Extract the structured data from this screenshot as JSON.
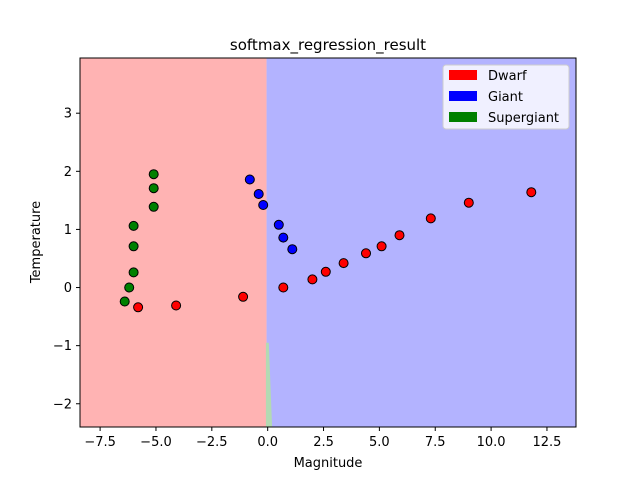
{
  "chart_data": {
    "type": "scatter",
    "title": "softmax_regression_result",
    "xlabel": "Magnitude",
    "ylabel": "Temperature",
    "xlim": [
      -8.4,
      13.8
    ],
    "ylim": [
      -2.4,
      3.95
    ],
    "xticks": [
      -7.5,
      -5.0,
      -2.5,
      0.0,
      2.5,
      5.0,
      7.5,
      10.0,
      12.5
    ],
    "xtick_labels": [
      "−7.5",
      "−5.0",
      "−2.5",
      "0.0",
      "2.5",
      "5.0",
      "7.5",
      "10.0",
      "12.5"
    ],
    "yticks": [
      -2,
      -1,
      0,
      1,
      2,
      3
    ],
    "ytick_labels": [
      "−2",
      "−1",
      "0",
      "1",
      "2",
      "3"
    ],
    "grid": false,
    "legend_position": "top-right",
    "regions": [
      {
        "class": "Dwarf",
        "color": "#ffb3b3",
        "x_from": -8.4,
        "x_to": -0.05
      },
      {
        "class": "Giant",
        "color": "#b3b3ff",
        "x_from": -0.05,
        "x_to": 13.8
      },
      {
        "class": "Supergiant",
        "color": "#b3dab3",
        "boundary_sliver": [
          [
            -0.08,
            -0.95
          ],
          [
            0.05,
            -0.95
          ],
          [
            0.2,
            -2.4
          ],
          [
            -0.08,
            -2.4
          ]
        ]
      }
    ],
    "legend": [
      {
        "name": "Dwarf",
        "color": "#ff0000"
      },
      {
        "name": "Giant",
        "color": "#0000ff"
      },
      {
        "name": "Supergiant",
        "color": "#008000"
      }
    ],
    "series": [
      {
        "name": "Dwarf",
        "color": "#ff0000",
        "points": [
          [
            -5.8,
            -0.34
          ],
          [
            -4.1,
            -0.31
          ],
          [
            -1.1,
            -0.16
          ],
          [
            0.7,
            0.0
          ],
          [
            2.0,
            0.14
          ],
          [
            2.6,
            0.27
          ],
          [
            3.4,
            0.42
          ],
          [
            4.4,
            0.59
          ],
          [
            5.1,
            0.71
          ],
          [
            5.9,
            0.9
          ],
          [
            7.3,
            1.19
          ],
          [
            9.0,
            1.46
          ],
          [
            11.8,
            1.64
          ]
        ]
      },
      {
        "name": "Giant",
        "color": "#0000ff",
        "points": [
          [
            -0.8,
            1.86
          ],
          [
            -0.4,
            1.61
          ],
          [
            -0.2,
            1.42
          ],
          [
            0.5,
            1.08
          ],
          [
            0.7,
            0.86
          ],
          [
            1.1,
            0.66
          ]
        ]
      },
      {
        "name": "Supergiant",
        "color": "#008000",
        "points": [
          [
            -5.1,
            1.95
          ],
          [
            -5.1,
            1.71
          ],
          [
            -5.1,
            1.39
          ],
          [
            -6.0,
            1.06
          ],
          [
            -6.0,
            0.71
          ],
          [
            -6.0,
            0.26
          ],
          [
            -6.2,
            0.0
          ],
          [
            -6.4,
            -0.24
          ]
        ]
      }
    ]
  }
}
